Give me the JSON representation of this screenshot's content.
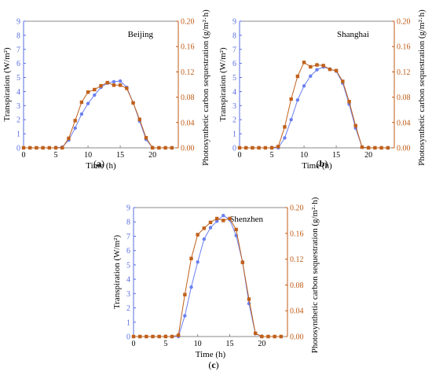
{
  "figure": {
    "colors": {
      "transpiration": "#6a7ff0",
      "carbon": "#c0601a",
      "axis_left": "#5a6ee0",
      "axis_right": "#c05a14"
    }
  },
  "chart_data": [
    {
      "type": "line",
      "panel_label_prefix": "(",
      "panel_letter": "a",
      "panel_label_suffix": ")",
      "city": "Beijing",
      "xlabel": "Time (h)",
      "ylabel_left": "Transpiration (W/m²)",
      "ylabel_right": "Photosynthetic carbon sequestration (g/m²·h)",
      "xlim": [
        0,
        24
      ],
      "ylim_left": [
        0,
        9
      ],
      "ylim_right": [
        0,
        0.2
      ],
      "xticks": [
        "0",
        "5",
        "10",
        "15",
        "20"
      ],
      "yticks_left": [
        "0",
        "1",
        "2",
        "3",
        "4",
        "5",
        "6",
        "7",
        "8",
        "9"
      ],
      "yticks_right": [
        "0.00",
        "0.04",
        "0.08",
        "0.12",
        "0.16",
        "0.20"
      ],
      "x": [
        0,
        1,
        2,
        3,
        4,
        5,
        6,
        7,
        8,
        9,
        10,
        11,
        12,
        13,
        14,
        15,
        16,
        17,
        18,
        19,
        20,
        21,
        22,
        23
      ],
      "series": [
        {
          "axis": "left",
          "marker": "circle",
          "values": [
            0,
            0,
            0,
            0,
            0,
            0,
            0.05,
            0.55,
            1.4,
            2.4,
            3.15,
            3.75,
            4.3,
            4.6,
            4.7,
            4.75,
            4.3,
            3.2,
            1.9,
            0.6,
            0,
            0,
            0,
            0
          ]
        },
        {
          "axis": "right",
          "marker": "square",
          "values": [
            0,
            0,
            0,
            0,
            0,
            0,
            0,
            0.015,
            0.043,
            0.072,
            0.088,
            0.092,
            0.098,
            0.103,
            0.099,
            0.099,
            0.094,
            0.071,
            0.045,
            0.016,
            0,
            0,
            0,
            0
          ]
        }
      ]
    },
    {
      "type": "line",
      "panel_label_prefix": "(",
      "panel_letter": "b",
      "panel_label_suffix": ")",
      "city": "Shanghai",
      "xlabel": "Time (h)",
      "ylabel_left": "Transpiration (W/m²)",
      "ylabel_right": "Photosynthetic carbon sequestration (g/m²·h)",
      "xlim": [
        0,
        24
      ],
      "ylim_left": [
        0,
        9
      ],
      "ylim_right": [
        0,
        0.2
      ],
      "xticks": [
        "0",
        "5",
        "10",
        "15",
        "20"
      ],
      "yticks_left": [
        "0",
        "1",
        "2",
        "3",
        "4",
        "5",
        "6",
        "7",
        "8",
        "9"
      ],
      "yticks_right": [
        "0.00",
        "0.04",
        "0.08",
        "0.12",
        "0.16",
        "0.20"
      ],
      "x": [
        0,
        1,
        2,
        3,
        4,
        5,
        6,
        7,
        8,
        9,
        10,
        11,
        12,
        13,
        14,
        15,
        16,
        17,
        18,
        19,
        20,
        21,
        22,
        23
      ],
      "series": [
        {
          "axis": "left",
          "marker": "circle",
          "values": [
            0,
            0,
            0,
            0,
            0,
            0,
            0,
            0.7,
            2.0,
            3.4,
            4.4,
            5.1,
            5.55,
            5.75,
            5.6,
            5.45,
            4.6,
            3.1,
            1.4,
            0.05,
            0,
            0,
            0,
            0
          ]
        },
        {
          "axis": "right",
          "marker": "square",
          "values": [
            0,
            0,
            0,
            0,
            0,
            0,
            0.002,
            0.033,
            0.077,
            0.113,
            0.135,
            0.128,
            0.131,
            0.13,
            0.124,
            0.122,
            0.105,
            0.073,
            0.035,
            0.001,
            0,
            0,
            0,
            0
          ]
        }
      ]
    },
    {
      "type": "line",
      "panel_label_prefix": "(",
      "panel_letter": "c",
      "panel_label_suffix": ")",
      "city": "Shenzhen",
      "xlabel": "Time (h)",
      "ylabel_left": "Transpiration (W/m²)",
      "ylabel_right": "Photosynthetic carbon sequestration (g/m²·h)",
      "xlim": [
        0,
        24
      ],
      "ylim_left": [
        0,
        9
      ],
      "ylim_right": [
        0,
        0.2
      ],
      "xticks": [
        "0",
        "5",
        "10",
        "15",
        "20"
      ],
      "yticks_left": [
        "0",
        "1",
        "2",
        "3",
        "4",
        "5",
        "6",
        "7",
        "8",
        "9"
      ],
      "yticks_right": [
        "0.00",
        "0.04",
        "0.08",
        "0.12",
        "0.16",
        "0.20"
      ],
      "x": [
        0,
        1,
        2,
        3,
        4,
        5,
        6,
        7,
        8,
        9,
        10,
        11,
        12,
        13,
        14,
        15,
        16,
        17,
        18,
        19,
        20,
        21,
        22,
        23
      ],
      "series": [
        {
          "axis": "left",
          "marker": "circle",
          "values": [
            0,
            0,
            0,
            0,
            0,
            0,
            0,
            0,
            1.45,
            3.45,
            5.2,
            6.8,
            7.6,
            8.05,
            8.45,
            8.15,
            7.05,
            5.2,
            2.3,
            0.2,
            0,
            0,
            0,
            0
          ]
        },
        {
          "axis": "right",
          "marker": "square",
          "values": [
            0,
            0,
            0,
            0,
            0,
            0,
            0,
            0.002,
            0.065,
            0.121,
            0.158,
            0.168,
            0.177,
            0.183,
            0.18,
            0.183,
            0.166,
            0.115,
            0.058,
            0.005,
            0,
            0,
            0,
            0
          ]
        }
      ]
    }
  ]
}
